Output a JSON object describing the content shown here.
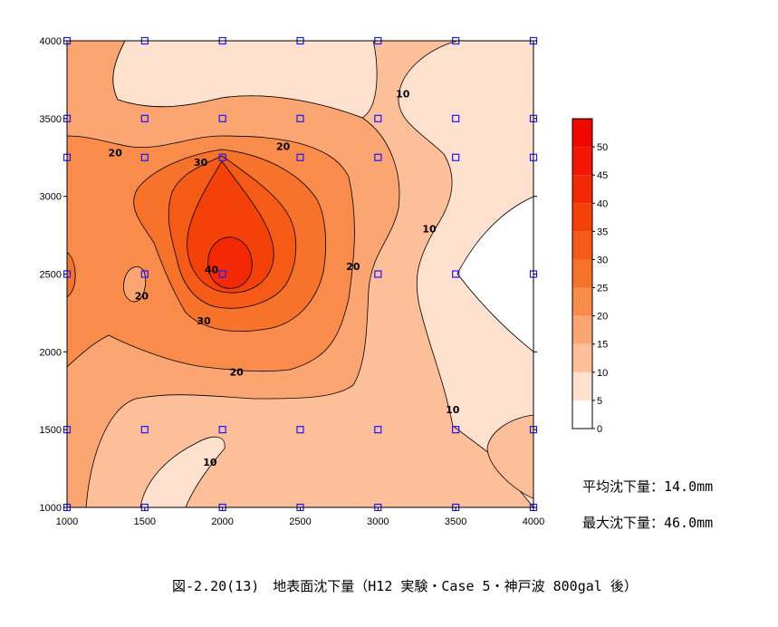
{
  "chart_data": {
    "type": "contour",
    "x_ticks": [
      1000,
      1500,
      2000,
      2500,
      3000,
      3500,
      4000
    ],
    "y_ticks": [
      1000,
      1500,
      2000,
      2500,
      3000,
      3500,
      4000
    ],
    "xlim": [
      1000,
      4000
    ],
    "ylim": [
      1000,
      4000
    ],
    "colorbar": {
      "levels": [
        0,
        5,
        10,
        15,
        20,
        25,
        30,
        35,
        40,
        45,
        50
      ],
      "tick_labels": [
        "0",
        "5",
        "10",
        "15",
        "20",
        "25",
        "30",
        "35",
        "40",
        "45",
        "50"
      ],
      "colors": [
        "#ffffff",
        "#fde0cd",
        "#fcbf99",
        "#fba573",
        "#f98c4a",
        "#f7722a",
        "#f55a16",
        "#f44009",
        "#f32906",
        "#f21603",
        "#f00800"
      ]
    },
    "contour_labels": [
      {
        "text": "10",
        "x": 3160,
        "y": 3660
      },
      {
        "text": "10",
        "x": 3330,
        "y": 2790
      },
      {
        "text": "10",
        "x": 3480,
        "y": 1630
      },
      {
        "text": "10",
        "x": 1920,
        "y": 1290
      },
      {
        "text": "20",
        "x": 1310,
        "y": 3280
      },
      {
        "text": "20",
        "x": 2390,
        "y": 3320
      },
      {
        "text": "20",
        "x": 2840,
        "y": 2550
      },
      {
        "text": "20",
        "x": 1480,
        "y": 2360
      },
      {
        "text": "20",
        "x": 2090,
        "y": 1870
      },
      {
        "text": "30",
        "x": 1860,
        "y": 3220
      },
      {
        "text": "30",
        "x": 1880,
        "y": 2200
      },
      {
        "text": "40",
        "x": 1930,
        "y": 2530
      }
    ],
    "measurement_points": [
      [
        1000,
        4000
      ],
      [
        1500,
        4000
      ],
      [
        2000,
        4000
      ],
      [
        2500,
        4000
      ],
      [
        3000,
        4000
      ],
      [
        3500,
        4000
      ],
      [
        4000,
        4000
      ],
      [
        1000,
        3500
      ],
      [
        1500,
        3500
      ],
      [
        2000,
        3500
      ],
      [
        2500,
        3500
      ],
      [
        3000,
        3500
      ],
      [
        3500,
        3500
      ],
      [
        4000,
        3500
      ],
      [
        1000,
        3250
      ],
      [
        1500,
        3250
      ],
      [
        2000,
        3250
      ],
      [
        2500,
        3250
      ],
      [
        3000,
        3250
      ],
      [
        3500,
        3250
      ],
      [
        4000,
        3250
      ],
      [
        1000,
        2500
      ],
      [
        1500,
        2500
      ],
      [
        2000,
        2500
      ],
      [
        3000,
        2500
      ],
      [
        3500,
        2500
      ],
      [
        4000,
        2500
      ],
      [
        1000,
        1500
      ],
      [
        1500,
        1500
      ],
      [
        2000,
        1500
      ],
      [
        2500,
        1500
      ],
      [
        3000,
        1500
      ],
      [
        3500,
        1500
      ],
      [
        4000,
        1500
      ],
      [
        1000,
        1000
      ],
      [
        1500,
        1000
      ],
      [
        2000,
        1000
      ],
      [
        2500,
        1000
      ],
      [
        3000,
        1000
      ],
      [
        3500,
        1000
      ],
      [
        4000,
        1000
      ]
    ]
  },
  "stats": {
    "average": "平均沈下量：14.0mm",
    "maximum": "最大沈下量：46.0mm"
  },
  "caption": "図-2.20(13)　地表面沈下量（H12 実験・Case 5・神戸波 800gal 後）"
}
